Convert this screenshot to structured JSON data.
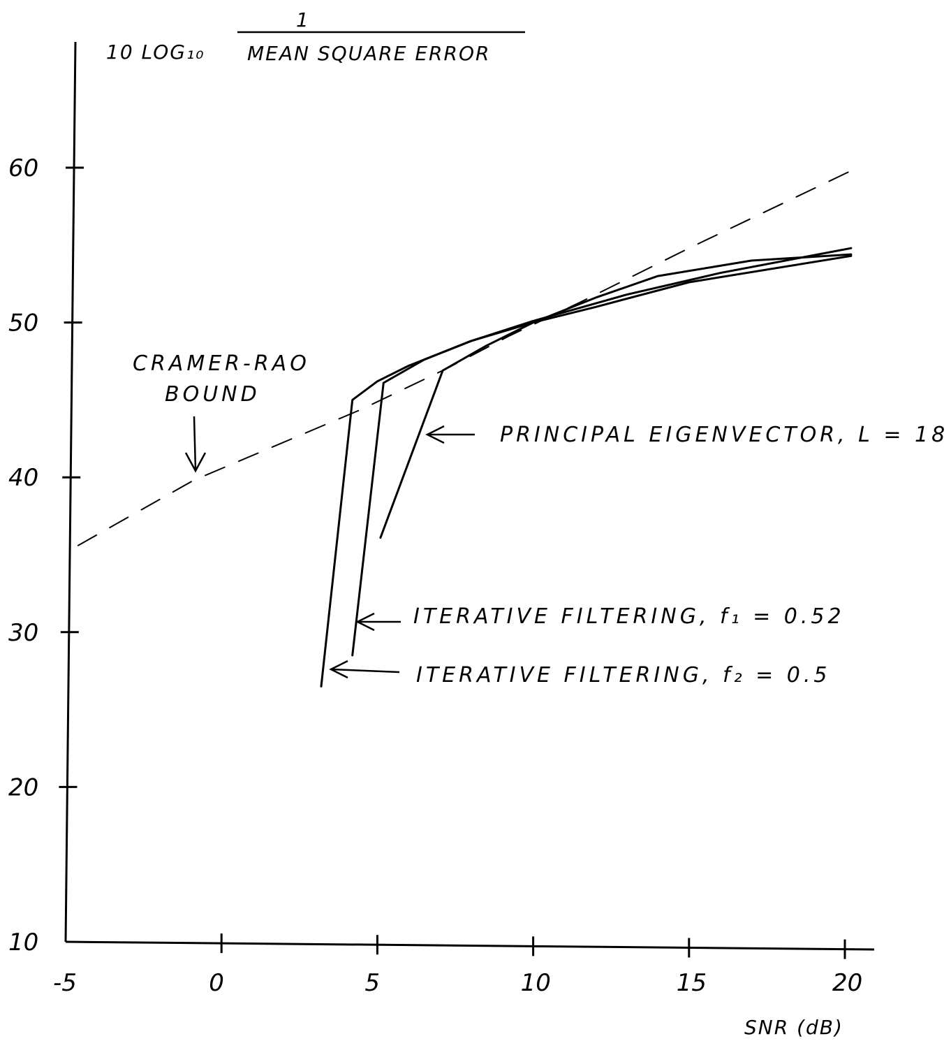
{
  "chart_data": {
    "type": "line",
    "title": "",
    "ylabel_prefix": "10 LOG₁₀",
    "ylabel_numerator": "1",
    "ylabel_denominator": "MEAN SQUARE ERROR",
    "xlabel": "SNR (dB)",
    "xlim": [
      -5,
      20.5
    ],
    "ylim": [
      10,
      60
    ],
    "x_ticks": [
      {
        "value": -5,
        "label": "-5"
      },
      {
        "value": 0,
        "label": "0"
      },
      {
        "value": 5,
        "label": "5"
      },
      {
        "value": 10,
        "label": "10"
      },
      {
        "value": 15,
        "label": "15"
      },
      {
        "value": 20,
        "label": "20"
      }
    ],
    "y_ticks": [
      {
        "value": 10,
        "label": "10"
      },
      {
        "value": 20,
        "label": "20"
      },
      {
        "value": 30,
        "label": "30"
      },
      {
        "value": 40,
        "label": "40"
      },
      {
        "value": 50,
        "label": "50"
      },
      {
        "value": 60,
        "label": "60"
      }
    ],
    "grid": false,
    "legend": "none",
    "series": [
      {
        "name": "CRAMER-RAO BOUND",
        "style": "dashed",
        "points": [
          [
            -4.6,
            35.6
          ],
          [
            -0.9,
            39.8
          ],
          [
            4.5,
            44.4
          ],
          [
            7.2,
            47.0
          ],
          [
            9.2,
            49.1
          ],
          [
            11.5,
            51.3
          ],
          [
            15,
            54.8
          ],
          [
            20.2,
            59.8
          ]
        ]
      },
      {
        "name": "PRINCIPAL EIGENVECTOR, L = 18",
        "style": "solid",
        "points": [
          [
            5.1,
            36.1
          ],
          [
            7.1,
            46.9
          ],
          [
            8.5,
            48.5
          ],
          [
            10.0,
            50.0
          ],
          [
            12.0,
            51.6
          ],
          [
            14.0,
            53.0
          ],
          [
            17.0,
            54.0
          ],
          [
            20.2,
            54.4
          ]
        ]
      },
      {
        "name": "ITERATIVE FILTERING, f₁ = 0.52",
        "style": "solid",
        "points": [
          [
            4.2,
            28.5
          ],
          [
            5.2,
            46.1
          ],
          [
            6.5,
            47.6
          ],
          [
            8.0,
            48.8
          ],
          [
            10.0,
            50.0
          ],
          [
            12.0,
            51.0
          ],
          [
            15.0,
            52.6
          ],
          [
            20.2,
            54.3
          ]
        ]
      },
      {
        "name": "ITERATIVE FILTERING, f₂ = 0.5",
        "style": "solid",
        "points": [
          [
            3.2,
            26.5
          ],
          [
            4.2,
            45.0
          ],
          [
            5.0,
            46.2
          ],
          [
            6.0,
            47.2
          ],
          [
            8.0,
            48.8
          ],
          [
            10.0,
            50.1
          ],
          [
            13.0,
            51.8
          ],
          [
            16.0,
            53.2
          ],
          [
            20.2,
            54.8
          ]
        ]
      }
    ],
    "annotations": {
      "cramer_rao": "CRAMER-RAO",
      "bound": "BOUND",
      "principal": "PRINCIPAL EIGENVECTOR, L = 18",
      "iter1": "ITERATIVE FILTERING, f₁ = 0.52",
      "iter2": "ITERATIVE FILTERING, f₂ = 0.5"
    }
  }
}
